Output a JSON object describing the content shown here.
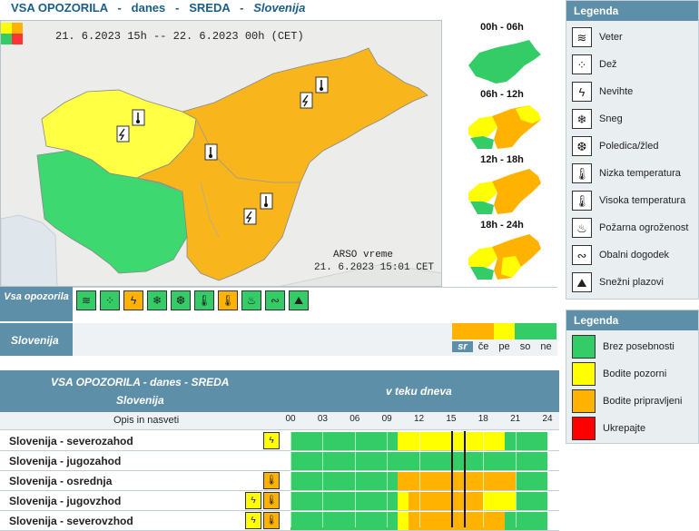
{
  "header": {
    "part1": "VSA OPOZORILA   -   danes   -   SREDA   -   ",
    "region": "Slovenija"
  },
  "map": {
    "validity": "21. 6.2023 15h  --  22. 6.2023 00h      (CET)",
    "source": "ARSO vreme",
    "issued": "21. 6.2023  15:01 CET"
  },
  "thumbnails": [
    {
      "label": "00h - 06h"
    },
    {
      "label": "06h - 12h"
    },
    {
      "label": "12h - 18h"
    },
    {
      "label": "18h - 24h"
    }
  ],
  "legend_types": {
    "title": "Legenda",
    "items": [
      {
        "label": "Veter",
        "icon": "wind-icon"
      },
      {
        "label": "Dež",
        "icon": "rain-icon"
      },
      {
        "label": "Nevihte",
        "icon": "thunderstorm-icon"
      },
      {
        "label": "Sneg",
        "icon": "snow-icon"
      },
      {
        "label": "Poledica/žled",
        "icon": "ice-icon"
      },
      {
        "label": "Nizka temperatura",
        "icon": "low-temperature-icon"
      },
      {
        "label": "Visoka temperatura",
        "icon": "high-temperature-icon"
      },
      {
        "label": "Požarna ogroženost",
        "icon": "fire-danger-icon"
      },
      {
        "label": "Obalni dogodek",
        "icon": "coastal-event-icon"
      },
      {
        "label": "Snežni plazovi",
        "icon": "avalanche-icon"
      }
    ]
  },
  "legend_levels": {
    "title": "Legenda",
    "items": [
      {
        "label": "Brez posebnosti",
        "color": "#33cc66"
      },
      {
        "label": "Bodite pozorni",
        "color": "#ffff00"
      },
      {
        "label": "Bodite pripravljeni",
        "color": "#ffb300"
      },
      {
        "label": "Ukrepajte",
        "color": "#ff0000"
      }
    ]
  },
  "warning_types_row": {
    "label": "Vsa opozorila",
    "icons": [
      {
        "name": "wind-icon",
        "color": "#33cc66"
      },
      {
        "name": "rain-icon",
        "color": "#33cc66"
      },
      {
        "name": "thunderstorm-icon",
        "color": "#ffb300"
      },
      {
        "name": "snow-icon",
        "color": "#33cc66"
      },
      {
        "name": "ice-icon",
        "color": "#33cc66"
      },
      {
        "name": "low-temperature-icon",
        "color": "#33cc66"
      },
      {
        "name": "high-temperature-icon",
        "color": "#ffb300"
      },
      {
        "name": "fire-danger-icon",
        "color": "#33cc66"
      },
      {
        "name": "coastal-event-icon",
        "color": "#33cc66"
      },
      {
        "name": "avalanche-icon",
        "color": "#33cc66"
      }
    ]
  },
  "days_row": {
    "label": "Slovenija",
    "days": [
      {
        "name": "sr",
        "color": "#ffb300",
        "active": true
      },
      {
        "name": "če",
        "color": "#ffb300",
        "active": false
      },
      {
        "name": "pe",
        "color": "#ffff00",
        "active": false
      },
      {
        "name": "so",
        "color": "#33cc66",
        "active": false
      },
      {
        "name": "ne",
        "color": "#33cc66",
        "active": false
      }
    ]
  },
  "table": {
    "title": "VSA OPOZORILA - danes - SREDA",
    "subtitle": "Slovenija",
    "timeline_title": "v teku dneva",
    "col_header": "Opis in nasveti",
    "hours": [
      "00",
      "03",
      "06",
      "09",
      "12",
      "15",
      "18",
      "21",
      "24"
    ],
    "rows": [
      {
        "name": "Slovenija - severozahod",
        "icons": [
          {
            "n": "thunderstorm-icon",
            "c": "#ffff00"
          }
        ],
        "segments": [
          [
            0,
            10,
            "#33cc66"
          ],
          [
            10,
            20,
            "#ffff00"
          ],
          [
            20,
            24,
            "#33cc66"
          ]
        ]
      },
      {
        "name": "Slovenija - jugozahod",
        "icons": [],
        "segments": [
          [
            0,
            24,
            "#33cc66"
          ]
        ]
      },
      {
        "name": "Slovenija - osrednja",
        "icons": [
          {
            "n": "high-temperature-icon",
            "c": "#ffb300"
          }
        ],
        "segments": [
          [
            0,
            10,
            "#33cc66"
          ],
          [
            10,
            21,
            "#ffb300"
          ],
          [
            21,
            24,
            "#33cc66"
          ]
        ]
      },
      {
        "name": "Slovenija - jugovzhod",
        "icons": [
          {
            "n": "thunderstorm-icon",
            "c": "#ffff00"
          },
          {
            "n": "high-temperature-icon",
            "c": "#ffb300"
          }
        ],
        "segments": [
          [
            0,
            10,
            "#33cc66"
          ],
          [
            10,
            11,
            "#ffff00"
          ],
          [
            11,
            18,
            "#ffb300"
          ],
          [
            18,
            21,
            "#ffff00"
          ],
          [
            21,
            24,
            "#33cc66"
          ]
        ]
      },
      {
        "name": "Slovenija - severovzhod",
        "icons": [
          {
            "n": "thunderstorm-icon",
            "c": "#ffff00"
          },
          {
            "n": "high-temperature-icon",
            "c": "#ffb300"
          }
        ],
        "segments": [
          [
            0,
            10,
            "#33cc66"
          ],
          [
            10,
            11,
            "#ffff00"
          ],
          [
            11,
            20,
            "#ffb300"
          ],
          [
            20,
            24,
            "#33cc66"
          ]
        ]
      }
    ]
  }
}
